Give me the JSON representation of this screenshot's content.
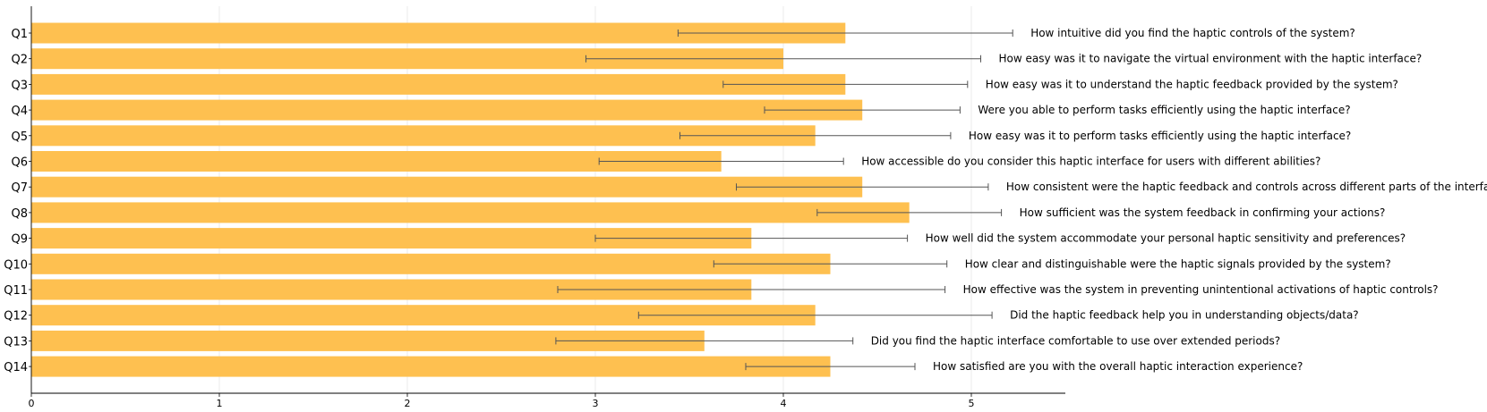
{
  "chart_data": {
    "type": "bar",
    "orientation": "horizontal",
    "bar_color": "#fec050",
    "grid_color": "#e6e6e6",
    "error_bar_color": "#555555",
    "xlim": [
      0,
      5.5
    ],
    "x_ticks": [
      0,
      1,
      2,
      3,
      4,
      5
    ],
    "grid": true,
    "categories": [
      "Q1",
      "Q2",
      "Q3",
      "Q4",
      "Q5",
      "Q6",
      "Q7",
      "Q8",
      "Q9",
      "Q10",
      "Q11",
      "Q12",
      "Q13",
      "Q14"
    ],
    "values": [
      4.33,
      4.0,
      4.33,
      4.42,
      4.17,
      3.67,
      4.42,
      4.67,
      3.83,
      4.25,
      3.83,
      4.17,
      3.58,
      4.25
    ],
    "errors": [
      0.89,
      1.05,
      0.65,
      0.52,
      0.72,
      0.65,
      0.67,
      0.49,
      0.83,
      0.62,
      1.03,
      0.94,
      0.79,
      0.45
    ],
    "questions": [
      "How intuitive did you find the haptic controls of the system?",
      "How easy was it to navigate the virtual environment with the haptic interface?",
      "How easy was it to understand the haptic feedback provided by the system?",
      "Were you able to perform tasks efficiently using the haptic interface?",
      "How easy was it to perform tasks efficiently using the haptic interface?",
      "How accessible do you consider this haptic interface for users with different abilities?",
      "How consistent were the haptic feedback and controls across different parts of the interface?",
      "How sufficient was the system feedback in confirming your actions?",
      "How well did the system accommodate your personal haptic sensitivity and preferences?",
      "How clear and distinguishable were the haptic signals provided by the system?",
      "How effective was the system in preventing unintentional activations of haptic controls?",
      "Did the haptic feedback help you in understanding objects/data?",
      "Did you find the haptic interface comfortable to use over extended periods?",
      "How satisfied are you with the overall haptic interaction experience?"
    ]
  }
}
